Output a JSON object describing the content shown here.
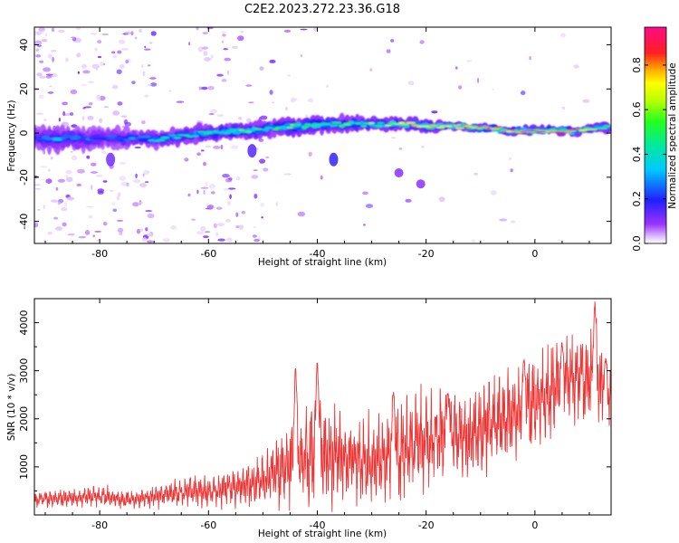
{
  "title": "C2E2.2023.272.23.36.G18",
  "colors": {
    "snr_line": "#ee3333",
    "axes": "#000000",
    "ridge_weak": "#7a18e6",
    "ridge_mid": "#19c9ff",
    "ridge_strong": "#ff2b2b"
  },
  "chart_data": [
    {
      "type": "heatmap",
      "xlabel": "Height of straight line (km)",
      "ylabel": "Frequency (Hz)",
      "xlim": [
        -92,
        14
      ],
      "ylim": [
        -50,
        48
      ],
      "x_ticks": [
        -80,
        -60,
        -40,
        -20,
        0
      ],
      "y_ticks": [
        -40,
        -20,
        0,
        20,
        40
      ],
      "colorbar": {
        "label": "Normalized spectral amplitude",
        "range": [
          0.0,
          0.97
        ],
        "ticks": [
          0.0,
          0.2,
          0.4,
          0.6,
          0.8
        ],
        "colormap": "rainbow (violet-blue-cyan-green-yellow-red-magenta)"
      },
      "ridge": {
        "x": [
          -91,
          -88,
          -85,
          -82,
          -79,
          -76,
          -73,
          -70,
          -67,
          -64,
          -61,
          -58,
          -55,
          -52,
          -49,
          -46,
          -43,
          -40,
          -37,
          -34,
          -31,
          -28,
          -25,
          -22,
          -19,
          -16,
          -13,
          -10,
          -7,
          -4,
          -1,
          2,
          5,
          8,
          11,
          14
        ],
        "frequency": [
          -2,
          -3,
          -2,
          -3,
          -2,
          -3,
          -2,
          -3,
          -2,
          -1,
          0,
          0,
          1,
          1,
          2,
          3,
          3,
          4,
          4,
          4,
          4,
          4,
          4,
          4,
          3,
          3,
          3,
          2,
          2,
          1,
          1,
          1,
          1,
          1,
          2,
          3
        ],
        "amplitude": [
          0.25,
          0.3,
          0.28,
          0.25,
          0.2,
          0.25,
          0.3,
          0.35,
          0.4,
          0.42,
          0.45,
          0.45,
          0.5,
          0.5,
          0.45,
          0.5,
          0.55,
          0.55,
          0.45,
          0.55,
          0.55,
          0.6,
          0.65,
          0.7,
          0.7,
          0.72,
          0.75,
          0.8,
          0.85,
          0.88,
          0.95,
          0.9,
          0.85,
          0.8,
          0.6,
          0.4
        ],
        "width": [
          5,
          6,
          6,
          5,
          5,
          5,
          4,
          4,
          4,
          4,
          4,
          4,
          4,
          4,
          4,
          4,
          4,
          4,
          4,
          4,
          3,
          3,
          3,
          3,
          3,
          2,
          2,
          2,
          2,
          2,
          2,
          2,
          2,
          2,
          2,
          3
        ]
      }
    },
    {
      "type": "line",
      "xlabel": "Height of straight line (km)",
      "ylabel": "SNR (10 * v/v)",
      "xlim": [
        -92,
        14
      ],
      "ylim": [
        0,
        4500
      ],
      "x_ticks": [
        -80,
        -60,
        -40,
        -20,
        0
      ],
      "y_ticks": [
        1000,
        2000,
        3000,
        4000
      ],
      "series": [
        {
          "color": "#ee3333",
          "x": [
            -92,
            -90,
            -88,
            -86,
            -84,
            -82,
            -80,
            -78,
            -76,
            -74,
            -72,
            -70,
            -68,
            -66,
            -64,
            -62,
            -60,
            -58,
            -56,
            -54,
            -52,
            -50,
            -48,
            -46,
            -44,
            -42,
            -40,
            -38,
            -36,
            -34,
            -32,
            -30,
            -28,
            -26,
            -24,
            -22,
            -20,
            -18,
            -16,
            -14,
            -12,
            -10,
            -8,
            -6,
            -4,
            -2,
            0,
            2,
            4,
            6,
            8,
            10,
            12,
            14
          ],
          "mean": [
            320,
            330,
            340,
            350,
            360,
            380,
            390,
            360,
            330,
            330,
            350,
            380,
            420,
            460,
            490,
            500,
            480,
            520,
            560,
            600,
            650,
            700,
            900,
            1000,
            1100,
            1200,
            1300,
            1250,
            1200,
            1150,
            1100,
            1050,
            1150,
            1250,
            1350,
            1450,
            1500,
            1600,
            1700,
            1650,
            1600,
            1800,
            1900,
            2000,
            2100,
            2200,
            2300,
            2500,
            2700,
            2800,
            2900,
            2800,
            2700,
            2300
          ],
          "amplitude": [
            150,
            160,
            170,
            180,
            180,
            190,
            190,
            180,
            170,
            170,
            180,
            200,
            230,
            260,
            280,
            300,
            300,
            320,
            350,
            400,
            450,
            500,
            700,
            800,
            900,
            950,
            1000,
            950,
            900,
            850,
            800,
            800,
            800,
            850,
            900,
            950,
            950,
            950,
            950,
            900,
            850,
            850,
            900,
            900,
            900,
            900,
            900,
            850,
            850,
            850,
            850,
            850,
            900,
            600
          ],
          "peaks": [
            {
              "x": -44,
              "y": 3100
            },
            {
              "x": -40,
              "y": 3200
            },
            {
              "x": -26,
              "y": 2600
            },
            {
              "x": -16,
              "y": 2600
            },
            {
              "x": -2,
              "y": 3300
            },
            {
              "x": 5,
              "y": 3600
            },
            {
              "x": 11,
              "y": 4450
            },
            {
              "x": 13,
              "y": 3300
            }
          ]
        }
      ]
    }
  ]
}
